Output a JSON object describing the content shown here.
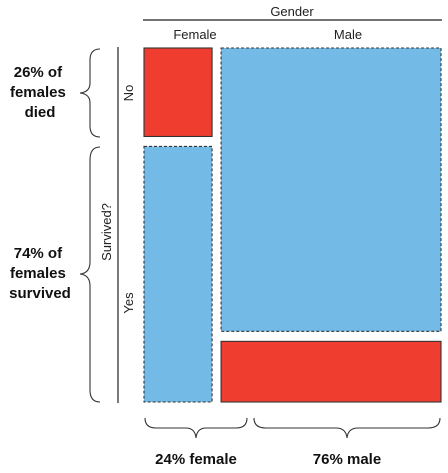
{
  "chart_data": {
    "type": "mosaic",
    "column_variable": "Gender",
    "row_variable": "Survived?",
    "columns": [
      "Female",
      "Male"
    ],
    "rows": [
      "No",
      "Yes"
    ],
    "column_shares": [
      24,
      76
    ],
    "died_share_within_column": [
      26,
      18
    ],
    "survived_share_within_column": [
      74,
      82
    ],
    "colors": {
      "No": "#ef3e30",
      "Yes": "#73bae6"
    },
    "annotations": {
      "female_died": [
        "26% of",
        "females",
        "died"
      ],
      "female_survived": [
        "74% of",
        "females",
        "survived"
      ],
      "female_share": "24% female",
      "male_share": "76% male"
    }
  }
}
